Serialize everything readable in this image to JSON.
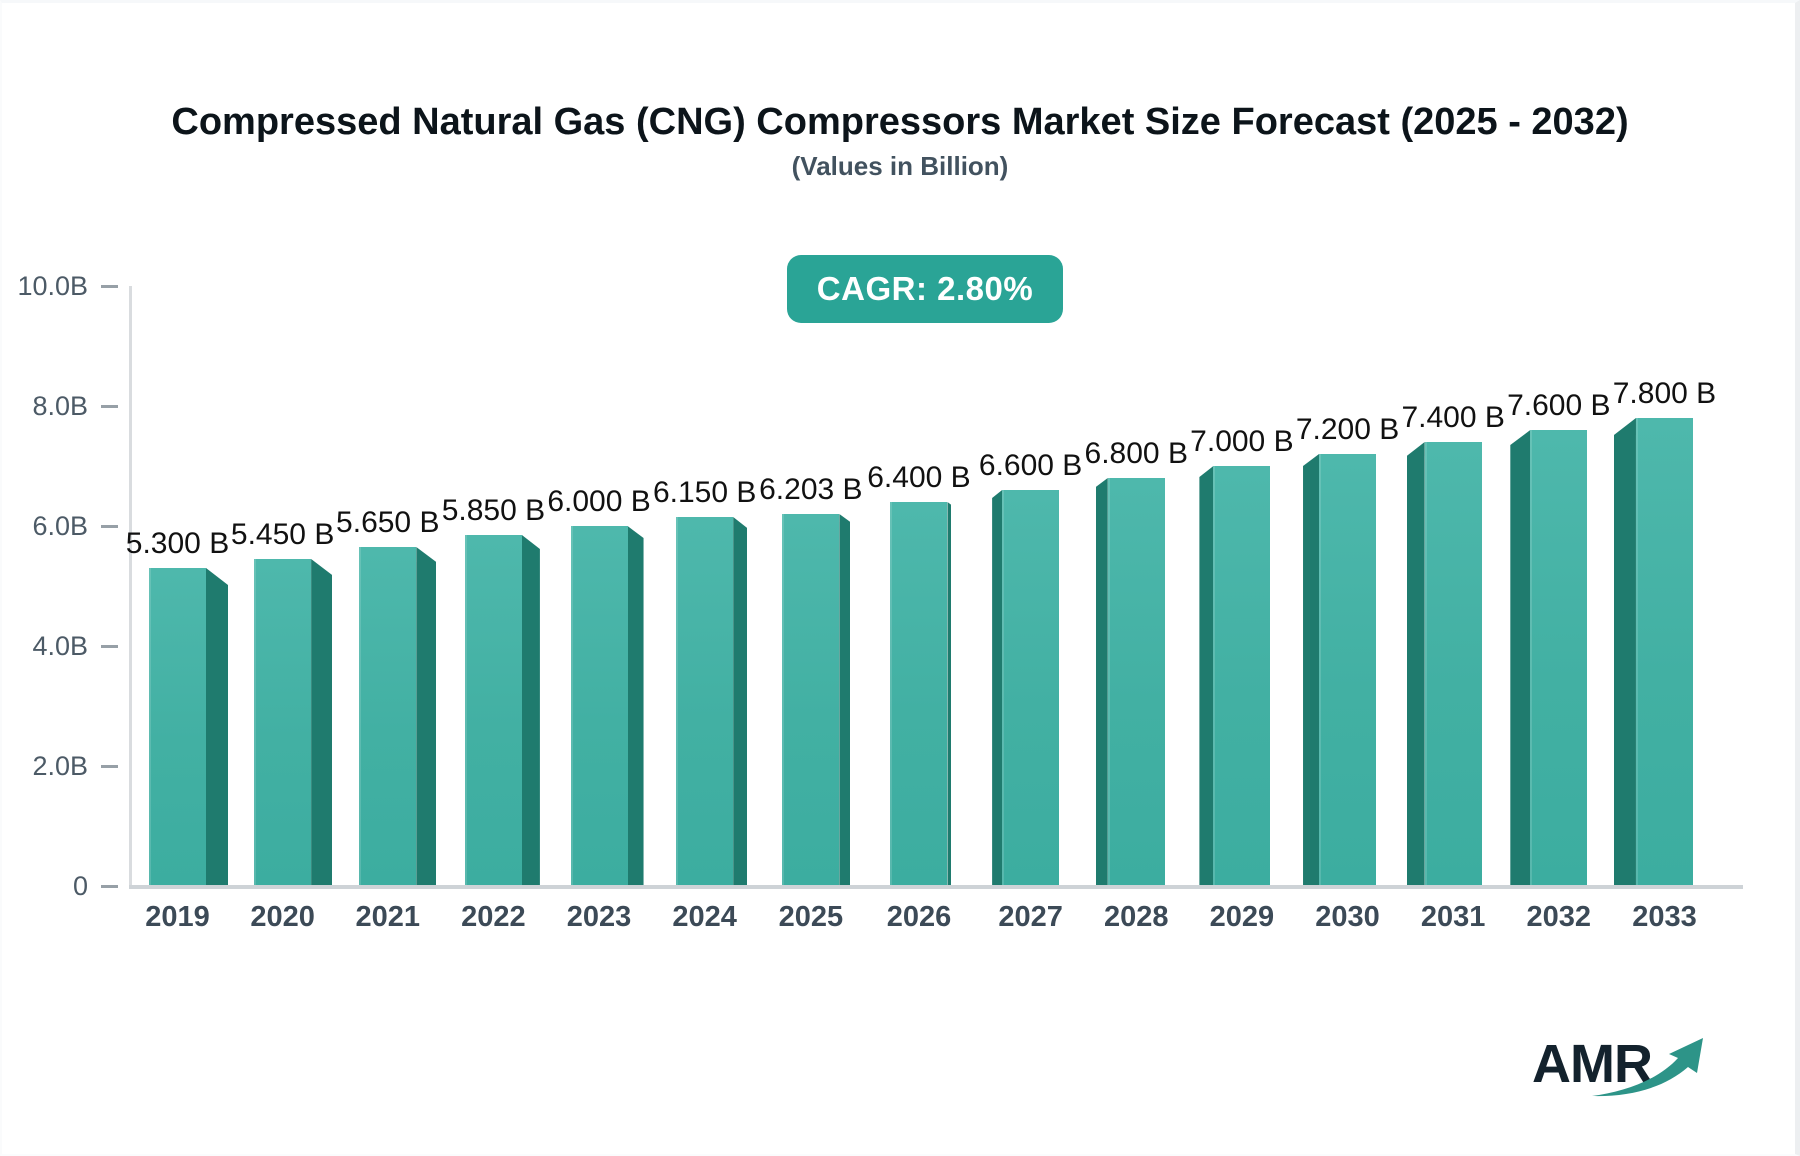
{
  "header": {
    "title": "Compressed Natural Gas (CNG) Compressors Market Size Forecast (2025 - 2032)",
    "subtitle": "(Values in Billion)"
  },
  "badge": {
    "label": "CAGR: 2.80%",
    "bg_color": "#2aa496",
    "text_color": "#ffffff"
  },
  "logo": {
    "text": "AMR",
    "text_color": "#13222d",
    "arrow_color": "#2d9488"
  },
  "chart_data": {
    "type": "bar",
    "title": "Compressed Natural Gas (CNG) Compressors Market Size Forecast (2025 - 2032)",
    "subtitle": "(Values in Billion)",
    "cagr": "2.80%",
    "unit": "Billion",
    "categories": [
      "2019",
      "2020",
      "2021",
      "2022",
      "2023",
      "2024",
      "2025",
      "2026",
      "2027",
      "2028",
      "2029",
      "2030",
      "2031",
      "2032",
      "2033"
    ],
    "values": [
      5.3,
      5.45,
      5.65,
      5.85,
      6.0,
      6.15,
      6.203,
      6.4,
      6.6,
      6.8,
      7.0,
      7.2,
      7.4,
      7.6,
      7.8
    ],
    "value_labels": [
      "5.300 B",
      "5.450 B",
      "5.650 B",
      "5.850 B",
      "6.000 B",
      "6.150 B",
      "6.203 B",
      "6.400 B",
      "6.600 B",
      "6.800 B",
      "7.000 B",
      "7.200 B",
      "7.400 B",
      "7.600 B",
      "7.800 B"
    ],
    "y_ticks": [
      "10.0B",
      "8.0B",
      "6.0B",
      "4.0B",
      "2.0B",
      "0"
    ],
    "ylim": [
      0,
      10
    ],
    "grid": "off",
    "legend": "none",
    "bar_face_color": "#45b2a6",
    "bar_side_color": "#1f7b6e",
    "style": "3d-perspective-bars"
  }
}
